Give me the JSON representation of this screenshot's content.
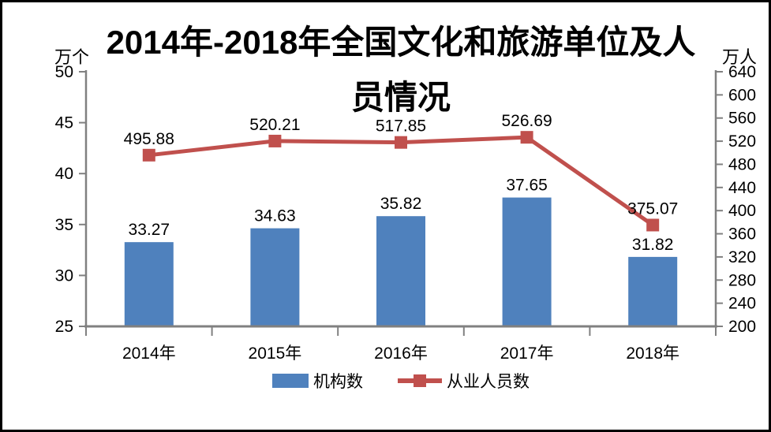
{
  "chart_data": {
    "type": "combo-bar-line",
    "title": "2014年-2018年全国文化和旅游单位及人员情况",
    "categories": [
      "2014年",
      "2015年",
      "2016年",
      "2017年",
      "2018年"
    ],
    "series": [
      {
        "name": "机构数",
        "type": "bar",
        "axis": "left",
        "color": "#4F81BD",
        "values": [
          33.27,
          34.63,
          35.82,
          37.65,
          31.82
        ]
      },
      {
        "name": "从业人员数",
        "type": "line",
        "axis": "right",
        "color": "#C0504D",
        "values": [
          495.88,
          520.21,
          517.85,
          526.69,
          375.07
        ]
      }
    ],
    "left_axis": {
      "unit": "万个",
      "min": 25,
      "max": 50,
      "step": 5
    },
    "right_axis": {
      "unit": "万人",
      "min": 200,
      "max": 640,
      "step": 40
    },
    "axis_color": "#808080",
    "label_color": "#000000",
    "grid": false,
    "legend_position": "bottom"
  }
}
